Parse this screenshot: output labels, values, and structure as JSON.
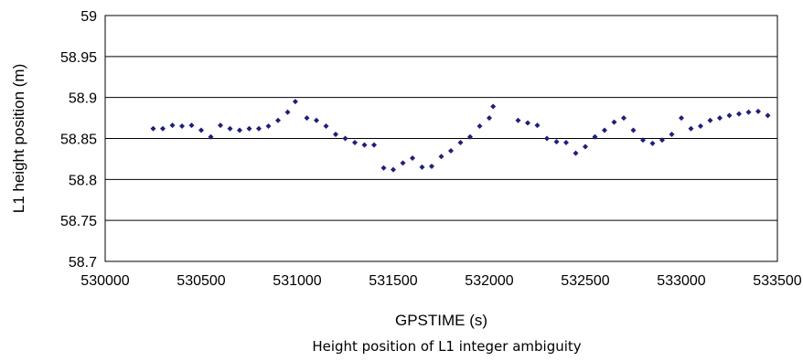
{
  "chart_data": {
    "type": "scatter",
    "title": "",
    "caption": "Height position of L1 integer ambiguity",
    "xlabel": "GPSTIME (s)",
    "ylabel": "L1 height position (m)",
    "xlim": [
      530000,
      533500
    ],
    "ylim": [
      58.7,
      59
    ],
    "x_ticks": [
      "530000",
      "530500",
      "531000",
      "531500",
      "532000",
      "532500",
      "533000",
      "533500"
    ],
    "y_ticks": [
      "58.7",
      "58.75",
      "58.8",
      "58.85",
      "58.9",
      "58.95",
      "59"
    ],
    "grid": "horizontal",
    "legend": "none",
    "marker_color": "#1f1f7a",
    "marker": "diamond",
    "series": [
      {
        "x": [
          530250,
          530300,
          530350,
          530400,
          530450,
          530500,
          530550,
          530600,
          530650,
          530700,
          530750,
          530800,
          530850,
          530900,
          530950,
          530990,
          531050,
          531100,
          531150,
          531200,
          531250,
          531300,
          531350,
          531400,
          531450,
          531500,
          531550,
          531600,
          531650,
          531700,
          531750,
          531800,
          531850,
          531900,
          531950,
          532000,
          532020,
          532150,
          532200,
          532250,
          532300,
          532350,
          532400,
          532450,
          532500,
          532550,
          532600,
          532650,
          532700,
          532750,
          532800,
          532850,
          532900,
          532950,
          533000,
          533050,
          533100,
          533150,
          533200,
          533250,
          533300,
          533350,
          533400,
          533450
        ],
        "y": [
          58.862,
          58.862,
          58.866,
          58.865,
          58.866,
          58.86,
          58.852,
          58.866,
          58.862,
          58.86,
          58.862,
          58.862,
          58.865,
          58.872,
          58.882,
          58.895,
          58.875,
          58.872,
          58.865,
          58.855,
          58.85,
          58.845,
          58.842,
          58.842,
          58.814,
          58.812,
          58.82,
          58.826,
          58.815,
          58.816,
          58.828,
          58.835,
          58.845,
          58.852,
          58.865,
          58.875,
          58.889,
          58.872,
          58.869,
          58.866,
          58.85,
          58.846,
          58.845,
          58.832,
          58.84,
          58.852,
          58.86,
          58.87,
          58.875,
          58.86,
          58.848,
          58.844,
          58.848,
          58.855,
          58.875,
          58.862,
          58.865,
          58.872,
          58.875,
          58.878,
          58.88,
          58.882,
          58.883,
          58.878
        ]
      }
    ]
  }
}
